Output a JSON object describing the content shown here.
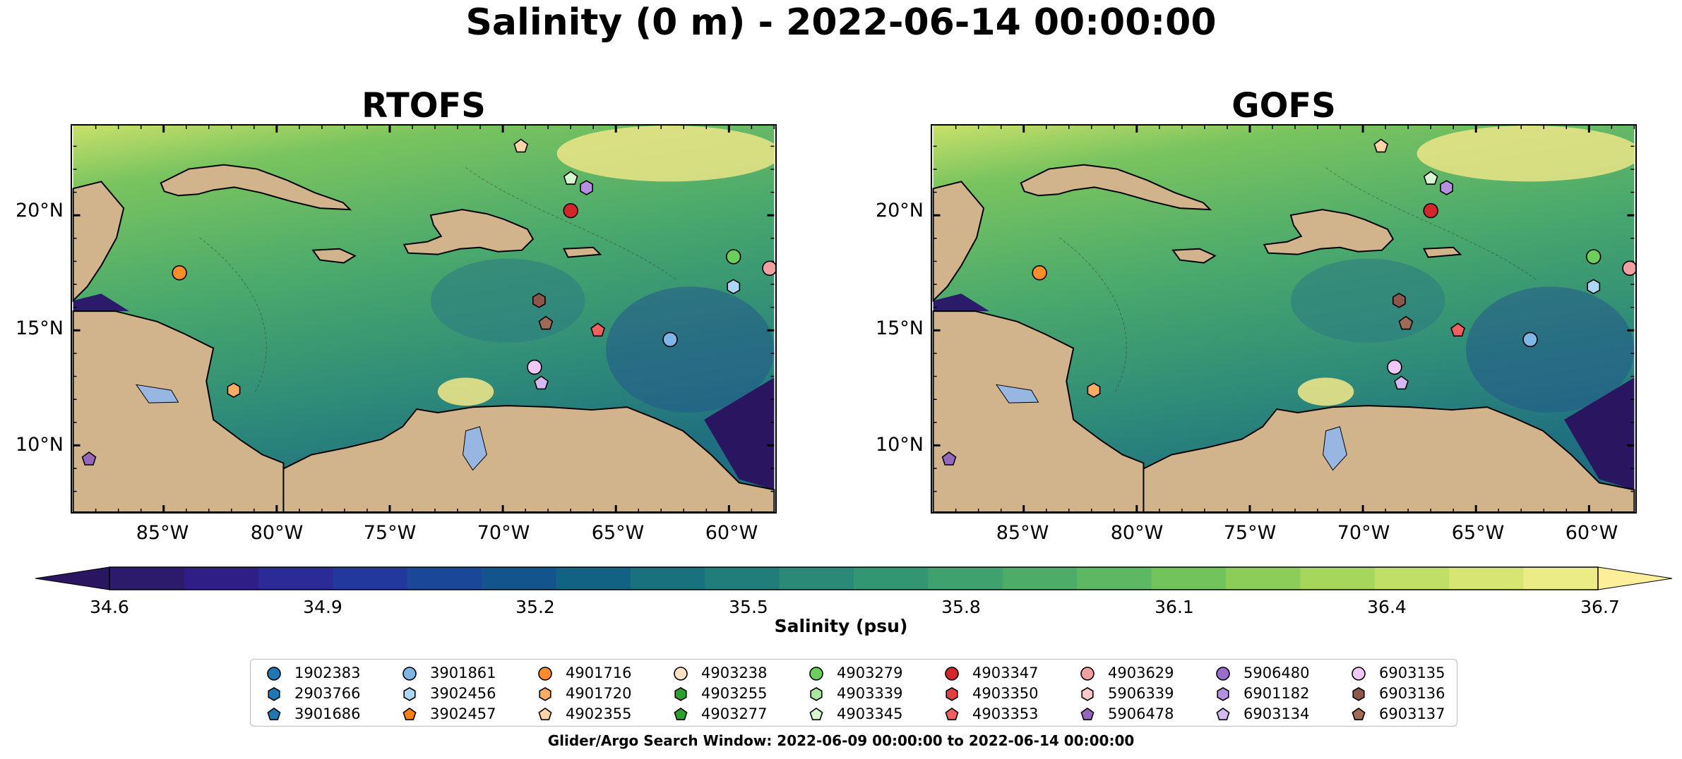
{
  "suptitle": "Salinity (0 m) - 2022-06-14 00:00:00",
  "panels": [
    {
      "title": "RTOFS"
    },
    {
      "title": "GOFS"
    }
  ],
  "lat_labels": [
    "20°N",
    "15°N",
    "10°N"
  ],
  "lon_labels": [
    "85°W",
    "80°W",
    "75°W",
    "70°W",
    "65°W",
    "60°W"
  ],
  "colorbar": {
    "label": "Salinity (psu)",
    "ticks": [
      "34.6",
      "34.9",
      "35.2",
      "35.5",
      "35.8",
      "36.1",
      "36.4",
      "36.7"
    ],
    "colors": [
      "#2c1b6b",
      "#2e1e85",
      "#2b2a97",
      "#22389c",
      "#1a4797",
      "#14548c",
      "#126383",
      "#18717d",
      "#217d7a",
      "#2a8a77",
      "#339673",
      "#3ea16e",
      "#4cac68",
      "#5eb762",
      "#73c35d",
      "#8ccd5a",
      "#a6d75c",
      "#c0df66",
      "#d7e673",
      "#ebec86"
    ],
    "extend_low": "#2a1660",
    "extend_high": "#fdee9a"
  },
  "legend": {
    "floats": [
      {
        "id": "1902383",
        "marker": "circle",
        "color": "#1f77b4"
      },
      {
        "id": "2903766",
        "marker": "hexagon",
        "color": "#1f77b4"
      },
      {
        "id": "3901686",
        "marker": "pentagon",
        "color": "#1f77b4"
      },
      {
        "id": "3901861",
        "marker": "circle",
        "color": "#7fb6e6"
      },
      {
        "id": "3902456",
        "marker": "hexagon",
        "color": "#aed6f5"
      },
      {
        "id": "3902457",
        "marker": "pentagon",
        "color": "#ff7f0e"
      },
      {
        "id": "4901716",
        "marker": "circle",
        "color": "#ff8c2a"
      },
      {
        "id": "4901720",
        "marker": "hexagon",
        "color": "#ffab63"
      },
      {
        "id": "4902355",
        "marker": "pentagon",
        "color": "#ffd5a8"
      },
      {
        "id": "4903238",
        "marker": "circle",
        "color": "#ffe2c6"
      },
      {
        "id": "4903255",
        "marker": "hexagon",
        "color": "#2ca02c"
      },
      {
        "id": "4903277",
        "marker": "pentagon",
        "color": "#2ca02c"
      },
      {
        "id": "4903279",
        "marker": "circle",
        "color": "#6ccf5b"
      },
      {
        "id": "4903339",
        "marker": "hexagon",
        "color": "#a8e6a0"
      },
      {
        "id": "4903345",
        "marker": "pentagon",
        "color": "#d6f7d0"
      },
      {
        "id": "4903347",
        "marker": "circle",
        "color": "#d62728"
      },
      {
        "id": "4903350",
        "marker": "hexagon",
        "color": "#e04040"
      },
      {
        "id": "4903353",
        "marker": "pentagon",
        "color": "#f06060"
      },
      {
        "id": "4903629",
        "marker": "circle",
        "color": "#f0a0a0"
      },
      {
        "id": "5906339",
        "marker": "hexagon",
        "color": "#ffc8c8"
      },
      {
        "id": "5906478",
        "marker": "pentagon",
        "color": "#9467bd"
      },
      {
        "id": "5906480",
        "marker": "circle",
        "color": "#9a6fcc"
      },
      {
        "id": "6901182",
        "marker": "hexagon",
        "color": "#b690e0"
      },
      {
        "id": "6903134",
        "marker": "pentagon",
        "color": "#d4b8f0"
      },
      {
        "id": "6903135",
        "marker": "circle",
        "color": "#f0c8f5"
      },
      {
        "id": "6903136",
        "marker": "hexagon",
        "color": "#8c564b"
      },
      {
        "id": "6903137",
        "marker": "pentagon",
        "color": "#a06a58"
      }
    ]
  },
  "search_window": "Glider/Argo Search Window: 2022-06-09 00:00:00 to 2022-06-14 00:00:00"
}
